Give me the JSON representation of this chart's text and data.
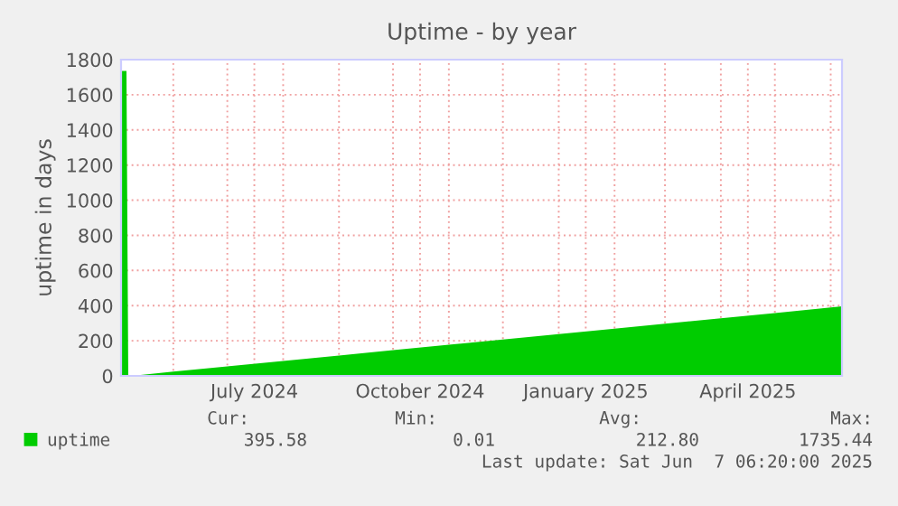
{
  "chart_data": {
    "type": "area",
    "title": "Uptime - by year",
    "ylabel": "uptime in days",
    "x": [
      "2024-05-03",
      "2024-05-06",
      "2024-05-07",
      "2024-05-09",
      "2024-06-01",
      "2024-07-01",
      "2024-08-01",
      "2024-09-01",
      "2024-10-01",
      "2024-11-01",
      "2024-12-01",
      "2025-01-01",
      "2025-02-01",
      "2025-03-01",
      "2025-04-01",
      "2025-05-01",
      "2025-06-07T06:20"
    ],
    "series": [
      {
        "name": "uptime",
        "color": "#00cc00",
        "values": [
          1735.44,
          1735.44,
          0.01,
          0.01,
          24,
          54,
          85,
          116,
          146,
          177,
          207,
          238,
          269,
          297,
          328,
          358,
          395.58
        ]
      }
    ],
    "xlim": [
      "2024-05-03",
      "2025-06-07T06:20"
    ],
    "xticks": [
      {
        "value": "2024-06-01",
        "label": null
      },
      {
        "value": "2024-07-01",
        "label": null
      },
      {
        "value": "2024-07-16",
        "label": "July 2024"
      },
      {
        "value": "2024-08-01",
        "label": null
      },
      {
        "value": "2024-09-01",
        "label": null
      },
      {
        "value": "2024-10-01",
        "label": null
      },
      {
        "value": "2024-10-16",
        "label": "October 2024"
      },
      {
        "value": "2024-11-01",
        "label": null
      },
      {
        "value": "2024-12-01",
        "label": null
      },
      {
        "value": "2025-01-01",
        "label": null
      },
      {
        "value": "2025-01-16",
        "label": "January 2025"
      },
      {
        "value": "2025-02-01",
        "label": null
      },
      {
        "value": "2025-03-01",
        "label": null
      },
      {
        "value": "2025-04-01",
        "label": null
      },
      {
        "value": "2025-04-16",
        "label": "April 2025"
      },
      {
        "value": "2025-05-01",
        "label": null
      },
      {
        "value": "2025-06-01",
        "label": null
      }
    ],
    "ylim": [
      0,
      1800
    ],
    "yticks": [
      0,
      200,
      400,
      600,
      800,
      1000,
      1200,
      1400,
      1600,
      1800
    ],
    "grid": true,
    "legend": "bottom left",
    "annotations": [
      "Cur:",
      "Min:",
      "Avg:",
      "Max:",
      "395.58",
      "0.01",
      "212.80",
      "1735.44",
      "Last update: Sat Jun  7 06:20:00 2025"
    ]
  }
}
